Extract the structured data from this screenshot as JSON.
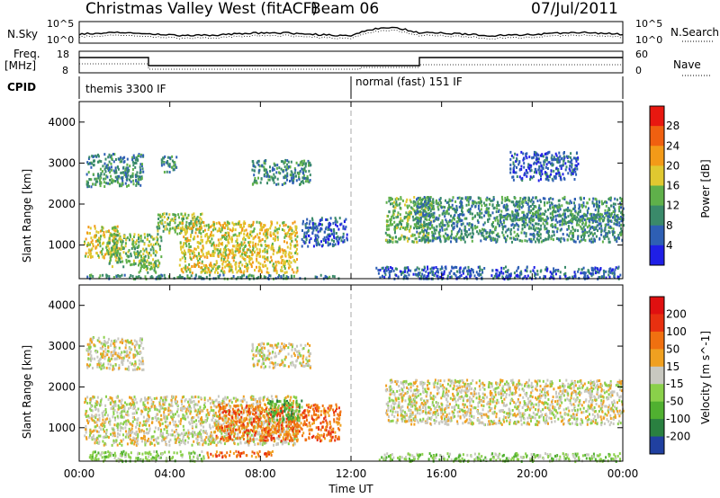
{
  "header": {
    "station": "Christmas Valley West (fitACF)",
    "beam": "Beam 06",
    "date": "07/Jul/2011"
  },
  "noise_panel": {
    "left_label": "N.Sky",
    "right_label": "N.Search",
    "tick_top": "10^5",
    "tick_bottom": "10^0"
  },
  "freq_panel": {
    "left_label_line1": "Freq.",
    "left_label_line2": "[MHz]",
    "left_tick_top": "18",
    "left_tick_bottom": "8",
    "right_label": "Nave",
    "right_tick_top": "60",
    "right_tick_bottom": "0"
  },
  "cpid_panel": {
    "label": "CPID",
    "segments": [
      {
        "start_h": 0,
        "end_h": 12,
        "text": "themis 3300 IF"
      },
      {
        "start_h": 12,
        "end_h": 24,
        "text": "normal (fast) 151 IF"
      }
    ]
  },
  "axes": {
    "x_ticks": [
      "00:00",
      "04:00",
      "08:00",
      "12:00",
      "16:00",
      "20:00",
      "00:00"
    ],
    "x_label": "Time UT",
    "y_label": "Slant Range [km]",
    "y_ticks": [
      "1000",
      "2000",
      "3000",
      "4000"
    ]
  },
  "colorbars": {
    "power": {
      "label": "Power [dB]",
      "ticks": [
        "4",
        "8",
        "12",
        "16",
        "20",
        "24",
        "28"
      ],
      "colors": [
        "#1f1fe6",
        "#2e5fb4",
        "#3a8a6a",
        "#5fb04a",
        "#e0c830",
        "#f39a18",
        "#f06010",
        "#e81810"
      ]
    },
    "velocity": {
      "label": "Velocity [m s^-1]",
      "ticks": [
        "200",
        "100",
        "50",
        "15",
        "-15",
        "-50",
        "-100",
        "-200"
      ],
      "colors": [
        "#2040a0",
        "#2a8040",
        "#50b030",
        "#8ad04a",
        "#c8c8c0",
        "#f0a020",
        "#f07010",
        "#e83010",
        "#e01010"
      ]
    }
  },
  "chart_data": {
    "type": "heatmap",
    "x_range_hours": [
      0,
      24
    ],
    "y_range_km": [
      180,
      4500
    ],
    "power_regions": [
      {
        "t0": 0.3,
        "t1": 2.8,
        "r0": 2450,
        "r1": 3250,
        "level": 2
      },
      {
        "t0": 3.6,
        "t1": 4.3,
        "r0": 2800,
        "r1": 3200,
        "level": 2
      },
      {
        "t0": 7.6,
        "t1": 10.2,
        "r0": 2500,
        "r1": 3100,
        "level": 2
      },
      {
        "t0": 0.2,
        "t1": 1.8,
        "r0": 700,
        "r1": 1500,
        "level": 4
      },
      {
        "t0": 1.2,
        "t1": 3.6,
        "r0": 500,
        "r1": 1300,
        "level": 3
      },
      {
        "t0": 2.6,
        "t1": 3.4,
        "r0": 350,
        "r1": 600,
        "level": 3
      },
      {
        "t0": 3.4,
        "t1": 5.4,
        "r0": 1300,
        "r1": 1800,
        "level": 3
      },
      {
        "t0": 4.4,
        "t1": 9.6,
        "r0": 350,
        "r1": 1600,
        "level": 4
      },
      {
        "t0": 9.8,
        "t1": 11.8,
        "r0": 1000,
        "r1": 1700,
        "level": 1
      },
      {
        "t0": 0.2,
        "t1": 11.5,
        "r0": 200,
        "r1": 300,
        "level": 2
      },
      {
        "t0": 13.5,
        "t1": 15.6,
        "r0": 1100,
        "r1": 2200,
        "level": 3
      },
      {
        "t0": 14.8,
        "t1": 24,
        "r0": 1100,
        "r1": 2200,
        "level": 2
      },
      {
        "t0": 18.5,
        "t1": 24,
        "r0": 1600,
        "r1": 1800,
        "level": 2
      },
      {
        "t0": 19.0,
        "t1": 22.0,
        "r0": 2600,
        "r1": 3300,
        "level": 1
      },
      {
        "t0": 13.0,
        "t1": 24,
        "r0": 200,
        "r1": 500,
        "level": 1
      }
    ],
    "velocity_regions": [
      {
        "t0": 0.3,
        "t1": 2.8,
        "r0": 2450,
        "r1": 3250,
        "level": 4
      },
      {
        "t0": 7.6,
        "t1": 10.2,
        "r0": 2500,
        "r1": 3100,
        "level": 4
      },
      {
        "t0": 0.2,
        "t1": 9.6,
        "r0": 600,
        "r1": 1800,
        "level": 4
      },
      {
        "t0": 6.0,
        "t1": 11.5,
        "r0": 700,
        "r1": 1600,
        "level": 6
      },
      {
        "t0": 8.3,
        "t1": 9.8,
        "r0": 1200,
        "r1": 1700,
        "level": 2
      },
      {
        "t0": 0.3,
        "t1": 5.5,
        "r0": 200,
        "r1": 450,
        "level": 3
      },
      {
        "t0": 5.6,
        "t1": 8.5,
        "r0": 300,
        "r1": 450,
        "level": 6
      },
      {
        "t0": 13.5,
        "t1": 24,
        "r0": 1100,
        "r1": 2200,
        "level": 4
      },
      {
        "t0": 13.2,
        "t1": 24,
        "r0": 200,
        "r1": 400,
        "level": 3
      }
    ]
  }
}
